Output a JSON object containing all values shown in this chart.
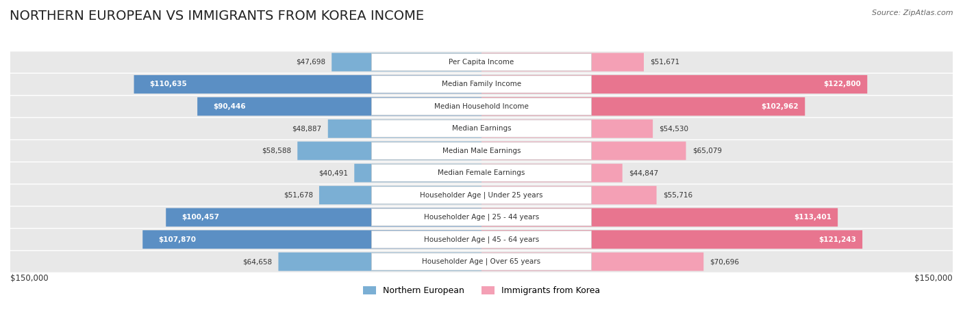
{
  "title": "NORTHERN EUROPEAN VS IMMIGRANTS FROM KOREA INCOME",
  "source": "Source: ZipAtlas.com",
  "categories": [
    "Per Capita Income",
    "Median Family Income",
    "Median Household Income",
    "Median Earnings",
    "Median Male Earnings",
    "Median Female Earnings",
    "Householder Age | Under 25 years",
    "Householder Age | 25 - 44 years",
    "Householder Age | 45 - 64 years",
    "Householder Age | Over 65 years"
  ],
  "northern_european": [
    47698,
    110635,
    90446,
    48887,
    58588,
    40491,
    51678,
    100457,
    107870,
    64658
  ],
  "immigrants_korea": [
    51671,
    122800,
    102962,
    54530,
    65079,
    44847,
    55716,
    113401,
    121243,
    70696
  ],
  "northern_european_labels": [
    "$47,698",
    "$110,635",
    "$90,446",
    "$48,887",
    "$58,588",
    "$40,491",
    "$51,678",
    "$100,457",
    "$107,870",
    "$64,658"
  ],
  "immigrants_korea_labels": [
    "$51,671",
    "$122,800",
    "$102,962",
    "$54,530",
    "$65,079",
    "$44,847",
    "$55,716",
    "$113,401",
    "$121,243",
    "$70,696"
  ],
  "ne_color": "#7bafd4",
  "ne_color_light": "#aecce8",
  "korea_color": "#f4a0b5",
  "korea_color_light": "#f9ccd8",
  "ne_color_dark": "#5b8fc4",
  "korea_color_dark": "#e8758f",
  "max_val": 150000,
  "background_color": "#f5f5f5",
  "row_bg_color": "#e8e8e8",
  "legend_ne": "Northern European",
  "legend_korea": "Immigrants from Korea",
  "title_fontsize": 14,
  "label_fontsize": 8.5,
  "axis_label": "$150,000"
}
